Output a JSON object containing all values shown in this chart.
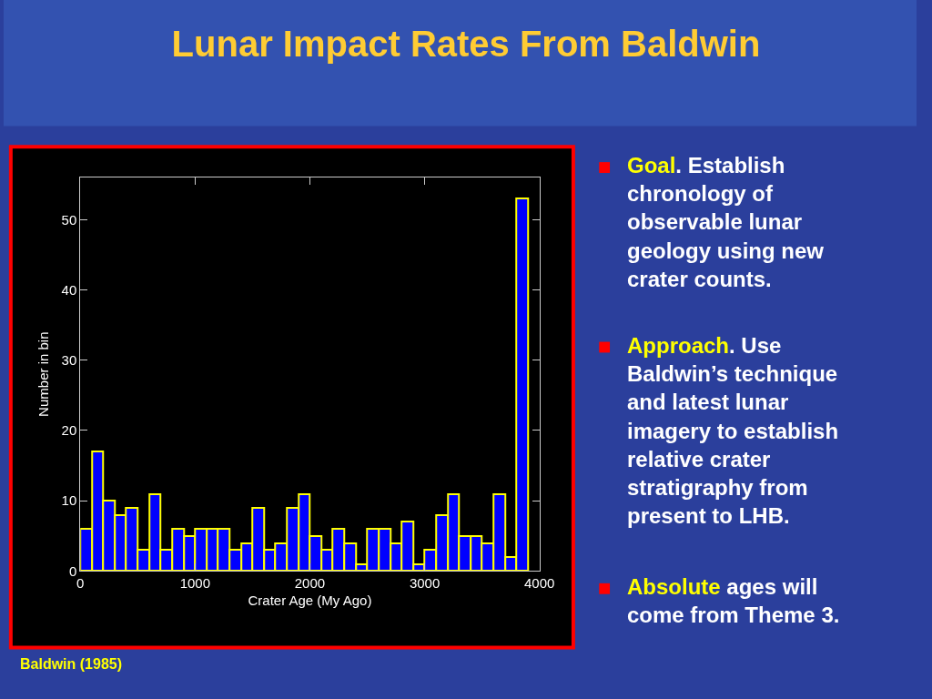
{
  "chart_data": {
    "type": "histogram",
    "title": "Lunar Impact Rates From Baldwin",
    "xlabel": "Crater Age (My Ago)",
    "ylabel": "Number in bin",
    "bins": [
      0,
      100,
      200,
      300,
      400,
      500,
      600,
      700,
      800,
      900,
      1000,
      1100,
      1200,
      1300,
      1400,
      1500,
      1600,
      1700,
      1800,
      1900,
      2000,
      2100,
      2200,
      2300,
      2400,
      2500,
      2600,
      2700,
      2800,
      2900,
      3000,
      3100,
      3200,
      3300,
      3400,
      3500,
      3600,
      3700,
      3800,
      3900,
      4000
    ],
    "values": [
      6,
      17,
      10,
      8,
      9,
      3,
      11,
      3,
      6,
      5,
      6,
      6,
      6,
      3,
      4,
      9,
      3,
      4,
      9,
      11,
      5,
      3,
      6,
      4,
      1,
      6,
      6,
      4,
      7,
      1,
      3,
      8,
      11,
      5,
      5,
      4,
      11,
      2,
      53,
      0
    ],
    "color": "#0000ff",
    "xlim": [
      0,
      4000
    ],
    "xticks": [
      0,
      1000,
      2000,
      3000,
      4000
    ],
    "ylim": [
      0,
      56
    ],
    "yticks": [
      0,
      10,
      20,
      30,
      40,
      50
    ],
    "grid": false,
    "annotations": [
      "Goal. Establish chronology of observable lunar geology using new crater counts.",
      "Approach. Use Baldwin’s technique and latest lunar imagery to establish relative crater stratigraphy from present to LHB.",
      "Absolute ages will come from Theme 3.",
      "Baldwin (1985)"
    ]
  }
}
